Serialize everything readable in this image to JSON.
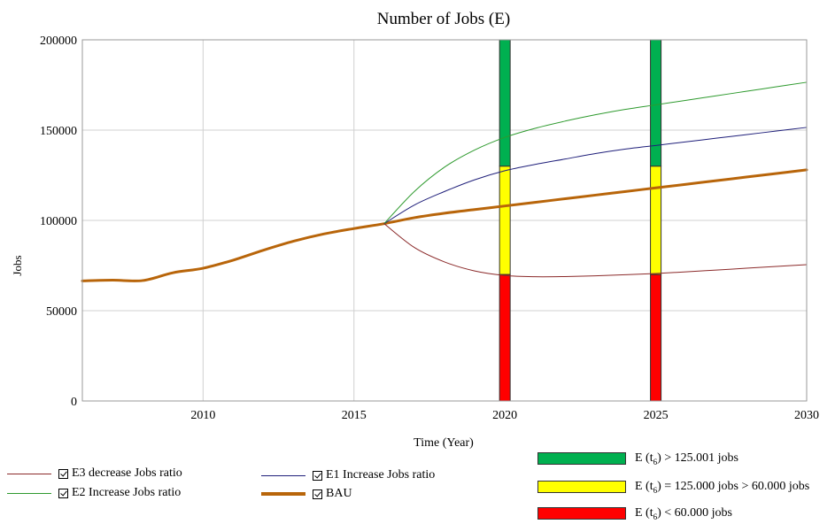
{
  "chart_data": {
    "type": "line",
    "title": "Number of Jobs (E)",
    "xlabel": "Time (Year)",
    "ylabel": "Jobs",
    "xlim": [
      2006,
      2030
    ],
    "ylim": [
      0,
      200000
    ],
    "x_ticks": [
      2010,
      2015,
      2020,
      2025,
      2030
    ],
    "y_ticks": [
      0,
      50000,
      100000,
      150000,
      200000
    ],
    "x_tick_labels": [
      "2010",
      "2015",
      "2020",
      "2025",
      "2030"
    ],
    "y_tick_labels": [
      "0",
      "50000",
      "100000",
      "150000",
      "200000"
    ],
    "grid": true,
    "series": [
      {
        "name": "BAU",
        "color": "#b8650a",
        "width": 3,
        "x": [
          2006,
          2007,
          2008,
          2009,
          2010,
          2011,
          2012,
          2013,
          2014,
          2015,
          2016,
          2017,
          2018,
          2019,
          2020,
          2021,
          2022,
          2023,
          2024,
          2025,
          2026,
          2027,
          2028,
          2029,
          2030
        ],
        "values": [
          66500,
          66900,
          66700,
          71000,
          73500,
          78000,
          83500,
          88500,
          92500,
          95500,
          98200,
          101500,
          104000,
          106000,
          108000,
          110000,
          112000,
          114000,
          116000,
          118000,
          120000,
          122000,
          124000,
          126000,
          128000
        ]
      },
      {
        "name": "E1 Increase Jobs ratio",
        "color": "#1f1f7a",
        "width": 1,
        "x": [
          2016,
          2017,
          2018,
          2019,
          2020,
          2021,
          2022,
          2023,
          2024,
          2025,
          2026,
          2027,
          2028,
          2029,
          2030
        ],
        "values": [
          98200,
          108500,
          116000,
          122500,
          127500,
          131000,
          134000,
          137000,
          139500,
          141500,
          143500,
          145500,
          147500,
          149500,
          151500
        ]
      },
      {
        "name": "E2 Increase Jobs ratio",
        "color": "#2e9a2e",
        "width": 1,
        "x": [
          2016,
          2017,
          2018,
          2019,
          2020,
          2021,
          2022,
          2023,
          2024,
          2025,
          2026,
          2027,
          2028,
          2029,
          2030
        ],
        "values": [
          98200,
          116000,
          129500,
          139000,
          146000,
          151000,
          155000,
          158500,
          161500,
          164000,
          166500,
          169000,
          171500,
          174000,
          176500
        ]
      },
      {
        "name": "E3 decrease Jobs ratio",
        "color": "#8b2a2a",
        "width": 1,
        "x": [
          2016,
          2017,
          2018,
          2019,
          2020,
          2021,
          2022,
          2023,
          2024,
          2025,
          2026,
          2027,
          2028,
          2029,
          2030
        ],
        "values": [
          98200,
          85000,
          77000,
          72000,
          69500,
          68800,
          68900,
          69300,
          69900,
          70600,
          71500,
          72500,
          73500,
          74500,
          75500
        ]
      }
    ],
    "bands": {
      "x": [
        2020,
        2025
      ],
      "segments": [
        {
          "name": "E (t₆) > 125.001 jobs",
          "from": 130000,
          "to": 200000,
          "color": "#00b050"
        },
        {
          "name": "E (t₆) = 125.000  jobs > 60.000  jobs",
          "from": 70000,
          "to": 130000,
          "color": "#ffff00"
        },
        {
          "name": "E (t₆) < 60.000 jobs",
          "from": 0,
          "to": 70000,
          "color": "#ff0000"
        }
      ]
    }
  },
  "legend": {
    "lines": [
      {
        "label": "E3 decrease Jobs ratio",
        "color": "#8b2a2a",
        "thickness": 1
      },
      {
        "label": "E2 Increase Jobs ratio",
        "color": "#2e9a2e",
        "thickness": 1
      },
      {
        "label": "E1 Increase Jobs ratio",
        "color": "#1f1f7a",
        "thickness": 1
      },
      {
        "label": "BAU",
        "color": "#b8650a",
        "thickness": 3
      }
    ],
    "bands": [
      {
        "pre": "E (t",
        "sub": "6",
        "post": ") > 125.001 jobs",
        "color": "#00b050"
      },
      {
        "pre": "E (t",
        "sub": "6",
        "post": ") = 125.000  jobs > 60.000  jobs",
        "color": "#ffff00"
      },
      {
        "pre": "E (t",
        "sub": "6",
        "post": ") < 60.000 jobs",
        "color": "#ff0000"
      }
    ]
  }
}
